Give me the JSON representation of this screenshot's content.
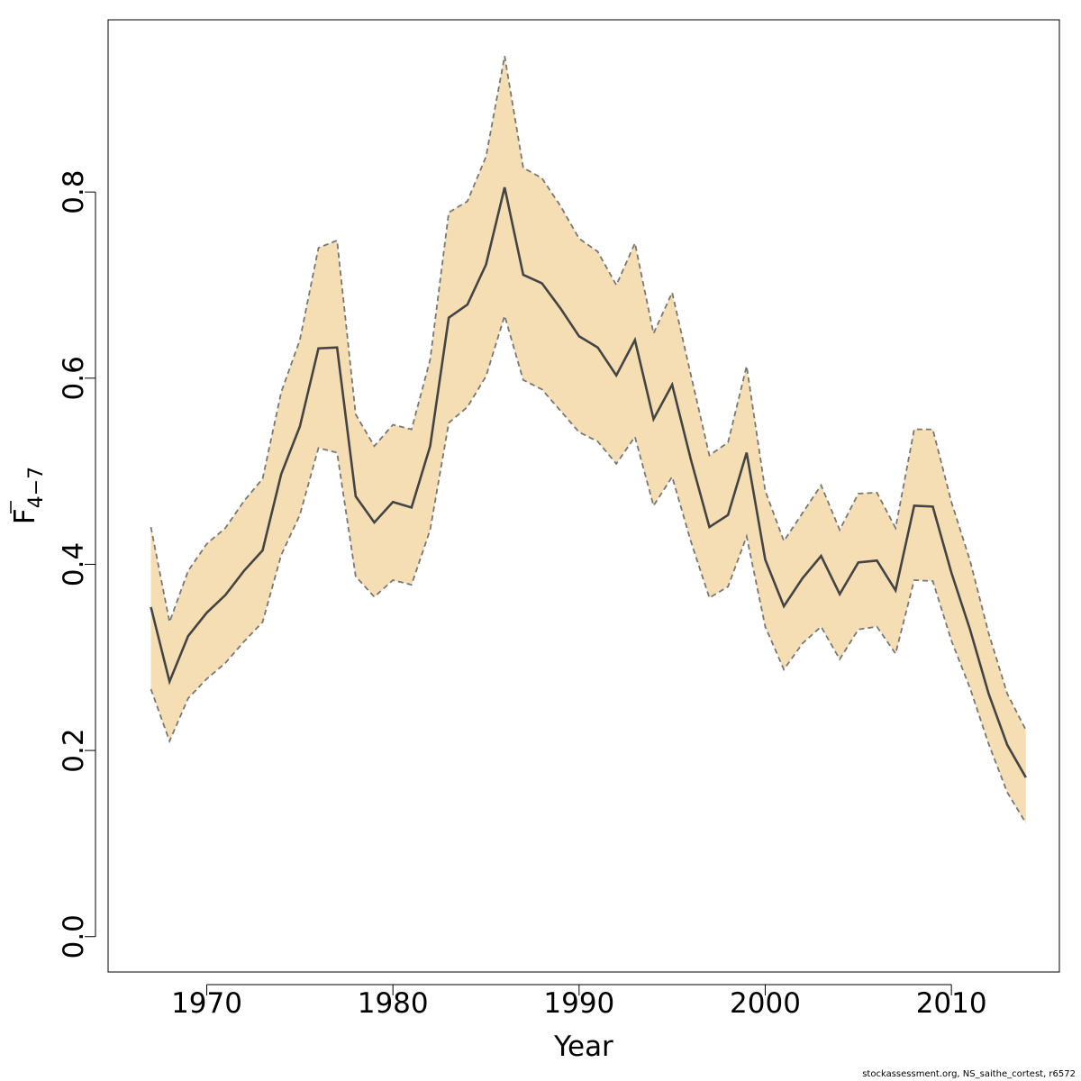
{
  "chart_data": {
    "type": "area",
    "title": "",
    "xlabel": "Year",
    "ylabel": {
      "main": "F",
      "subscript": "4−7",
      "overline": true
    },
    "xlim": [
      1964.7,
      2015.8
    ],
    "ylim": [
      -0.038,
      0.985
    ],
    "x_ticks": [
      1970,
      1980,
      1990,
      2000,
      2010
    ],
    "x_tick_labels": [
      "1970",
      "1980",
      "1990",
      "2000",
      "2010"
    ],
    "y_ticks": [
      0.0,
      0.2,
      0.4,
      0.6,
      0.8
    ],
    "y_tick_labels": [
      "0.0",
      "0.2",
      "0.4",
      "0.6",
      "0.8"
    ],
    "grid": false,
    "series": [
      {
        "name": "Fbar",
        "x": [
          1967,
          1968,
          1969,
          1970,
          1971,
          1972,
          1973,
          1974,
          1975,
          1976,
          1977,
          1978,
          1979,
          1980,
          1981,
          1982,
          1983,
          1984,
          1985,
          1986,
          1987,
          1988,
          1989,
          1990,
          1991,
          1992,
          1993,
          1994,
          1995,
          1996,
          1997,
          1998,
          1999,
          2000,
          2001,
          2002,
          2003,
          2004,
          2005,
          2006,
          2007,
          2008,
          2009,
          2010,
          2011,
          2012,
          2013,
          2014
        ],
        "values": [
          0.354,
          0.274,
          0.323,
          0.348,
          0.367,
          0.393,
          0.415,
          0.497,
          0.548,
          0.632,
          0.633,
          0.473,
          0.445,
          0.467,
          0.461,
          0.527,
          0.665,
          0.679,
          0.722,
          0.805,
          0.711,
          0.702,
          0.675,
          0.645,
          0.633,
          0.603,
          0.641,
          0.556,
          0.593,
          0.513,
          0.44,
          0.453,
          0.52,
          0.405,
          0.355,
          0.385,
          0.409,
          0.368,
          0.402,
          0.404,
          0.372,
          0.463,
          0.462,
          0.391,
          0.33,
          0.261,
          0.206,
          0.171
        ],
        "color": "#444444"
      },
      {
        "name": "upper",
        "x": [
          1967,
          1968,
          1969,
          1970,
          1971,
          1972,
          1973,
          1974,
          1975,
          1976,
          1977,
          1978,
          1979,
          1980,
          1981,
          1982,
          1983,
          1984,
          1985,
          1986,
          1987,
          1988,
          1989,
          1990,
          1991,
          1992,
          1993,
          1994,
          1995,
          1996,
          1997,
          1998,
          1999,
          2000,
          2001,
          2002,
          2003,
          2004,
          2005,
          2006,
          2007,
          2008,
          2009,
          2010,
          2011,
          2012,
          2013,
          2014
        ],
        "values": [
          0.44,
          0.338,
          0.393,
          0.422,
          0.439,
          0.468,
          0.492,
          0.585,
          0.641,
          0.74,
          0.748,
          0.561,
          0.527,
          0.55,
          0.545,
          0.62,
          0.778,
          0.79,
          0.838,
          0.946,
          0.826,
          0.815,
          0.785,
          0.75,
          0.736,
          0.7,
          0.745,
          0.648,
          0.692,
          0.604,
          0.517,
          0.531,
          0.613,
          0.479,
          0.425,
          0.455,
          0.485,
          0.437,
          0.476,
          0.477,
          0.439,
          0.545,
          0.545,
          0.467,
          0.404,
          0.326,
          0.261,
          0.222
        ],
        "color": "#777777",
        "dashed": true
      },
      {
        "name": "lower",
        "x": [
          1967,
          1968,
          1969,
          1970,
          1971,
          1972,
          1973,
          1974,
          1975,
          1976,
          1977,
          1978,
          1979,
          1980,
          1981,
          1982,
          1983,
          1984,
          1985,
          1986,
          1987,
          1988,
          1989,
          1990,
          1991,
          1992,
          1993,
          1994,
          1995,
          1996,
          1997,
          1998,
          1999,
          2000,
          2001,
          2002,
          2003,
          2004,
          2005,
          2006,
          2007,
          2008,
          2009,
          2010,
          2011,
          2012,
          2013,
          2014
        ],
        "values": [
          0.266,
          0.21,
          0.256,
          0.277,
          0.294,
          0.317,
          0.338,
          0.41,
          0.453,
          0.525,
          0.52,
          0.387,
          0.365,
          0.383,
          0.378,
          0.437,
          0.552,
          0.569,
          0.602,
          0.667,
          0.598,
          0.588,
          0.565,
          0.542,
          0.532,
          0.508,
          0.537,
          0.463,
          0.494,
          0.425,
          0.364,
          0.376,
          0.43,
          0.333,
          0.287,
          0.315,
          0.333,
          0.298,
          0.33,
          0.333,
          0.304,
          0.383,
          0.382,
          0.318,
          0.267,
          0.207,
          0.155,
          0.122
        ],
        "color": "#777777",
        "dashed": true
      }
    ],
    "band_fill": "#f5deb3"
  },
  "footer": "stockassessment.org, NS_saithe_cortest, r6572"
}
